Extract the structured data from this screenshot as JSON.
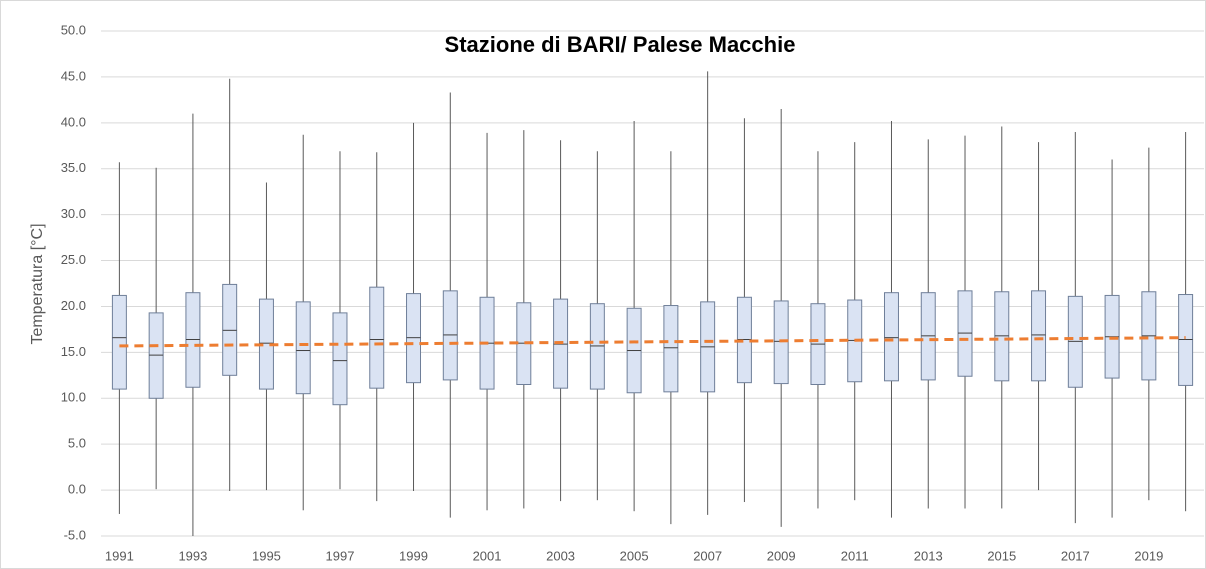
{
  "chart_data": {
    "type": "box",
    "title": "Stazione di BARI/ Palese Macchie",
    "y_label": "Temperatura [°C]",
    "categories": [
      "1991",
      null,
      "1993",
      null,
      "1995",
      null,
      "1997",
      null,
      "1999",
      null,
      "2001",
      null,
      "2003",
      null,
      "2005",
      null,
      "2007",
      null,
      "2009",
      null,
      "2011",
      null,
      "2013",
      null,
      "2015",
      null,
      "2017",
      null,
      "2019",
      null
    ],
    "box_color": "#dae3f3",
    "edge_color": "#6f7f99",
    "whisker_color": "#595959",
    "min": [
      -2.6,
      0.1,
      -5.0,
      -0.1,
      0.0,
      -2.2,
      0.1,
      -1.2,
      -0.1,
      -3.0,
      -2.2,
      -2.0,
      -1.2,
      -1.1,
      -2.3,
      -3.7,
      -2.7,
      -1.3,
      -4.0,
      -2.0,
      -1.1,
      -3.0,
      -2.0,
      -2.0,
      -2.0,
      0.0,
      -3.6,
      -3.0,
      -1.1,
      -2.3
    ],
    "q1": [
      11.0,
      10.0,
      11.2,
      12.5,
      11.0,
      10.5,
      9.3,
      11.1,
      11.7,
      12.0,
      11.0,
      11.5,
      11.1,
      11.0,
      10.6,
      10.7,
      10.7,
      11.7,
      11.6,
      11.5,
      11.8,
      11.9,
      12.0,
      12.4,
      11.9,
      11.9,
      11.2,
      12.2,
      12.0,
      11.4
    ],
    "median": [
      16.6,
      14.7,
      16.4,
      17.4,
      16.0,
      15.2,
      14.1,
      16.4,
      16.6,
      16.9,
      16.0,
      16.0,
      15.9,
      15.7,
      15.2,
      15.5,
      15.6,
      16.4,
      16.2,
      15.9,
      16.3,
      16.6,
      16.8,
      17.1,
      16.8,
      16.9,
      16.2,
      16.7,
      16.8,
      16.4
    ],
    "q3": [
      21.2,
      19.3,
      21.5,
      22.4,
      20.8,
      20.5,
      19.3,
      22.1,
      21.4,
      21.7,
      21.0,
      20.4,
      20.8,
      20.3,
      19.8,
      20.1,
      20.5,
      21.0,
      20.6,
      20.3,
      20.7,
      21.5,
      21.5,
      21.7,
      21.6,
      21.7,
      21.1,
      21.2,
      21.6,
      21.3
    ],
    "max": [
      35.7,
      35.1,
      41.0,
      44.8,
      33.5,
      38.7,
      36.9,
      36.8,
      40.0,
      43.3,
      38.9,
      39.2,
      38.1,
      36.9,
      40.2,
      36.9,
      45.6,
      40.5,
      41.5,
      36.9,
      37.9,
      40.2,
      38.2,
      38.6,
      39.6,
      37.9,
      39.0,
      36.0,
      37.3,
      39.0
    ],
    "trend": {
      "color": "#ed7d31",
      "start": 15.7,
      "end": 16.6
    },
    "ylim": [
      -5,
      50
    ],
    "yticks": [
      {
        "value": -5,
        "label": "-5.0"
      },
      {
        "value": 0,
        "label": "0.0"
      },
      {
        "value": 5,
        "label": "5.0"
      },
      {
        "value": 10,
        "label": "10.0"
      },
      {
        "value": 15,
        "label": "15.0"
      },
      {
        "value": 20,
        "label": "20.0"
      },
      {
        "value": 25,
        "label": "25.0"
      },
      {
        "value": 30,
        "label": "30.0"
      },
      {
        "value": 35,
        "label": "35.0"
      },
      {
        "value": 40,
        "label": "40.0"
      },
      {
        "value": 45,
        "label": "45.0"
      },
      {
        "value": 50,
        "label": "50.0"
      }
    ],
    "grid": true
  }
}
